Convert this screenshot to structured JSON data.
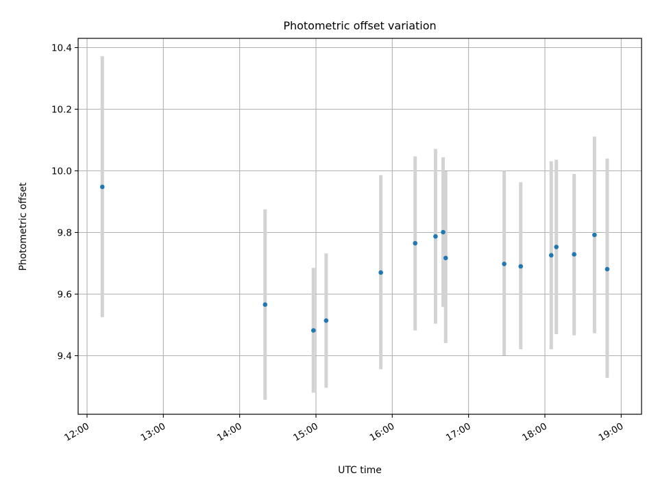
{
  "chart_data": {
    "type": "scatter",
    "title": "Photometric offset variation",
    "xlabel": "UTC time",
    "ylabel": "Photometric offset",
    "xlim": [
      "11:53",
      "19:16"
    ],
    "ylim": [
      9.21,
      10.43
    ],
    "x_ticks": [
      "12:00",
      "13:00",
      "14:00",
      "15:00",
      "16:00",
      "17:00",
      "18:00",
      "19:00"
    ],
    "y_ticks": [
      9.4,
      9.6,
      9.8,
      10.0,
      10.2,
      10.4
    ],
    "y_tick_labels": [
      "9.4",
      "9.6",
      "9.8",
      "10.0",
      "10.2",
      "10.4"
    ],
    "grid": true,
    "point_color": "#1f77b4",
    "errorbar_color": "#d3d3d3",
    "points": [
      {
        "time": "12:12",
        "y": 9.948,
        "ylow": 9.525,
        "yhigh": 10.372
      },
      {
        "time": "14:20",
        "y": 9.566,
        "ylow": 9.257,
        "yhigh": 9.875
      },
      {
        "time": "14:58",
        "y": 9.482,
        "ylow": 9.28,
        "yhigh": 9.685
      },
      {
        "time": "15:08",
        "y": 9.514,
        "ylow": 9.296,
        "yhigh": 9.732
      },
      {
        "time": "15:51",
        "y": 9.67,
        "ylow": 9.356,
        "yhigh": 9.986
      },
      {
        "time": "16:18",
        "y": 9.765,
        "ylow": 9.482,
        "yhigh": 10.047
      },
      {
        "time": "16:34",
        "y": 9.787,
        "ylow": 9.504,
        "yhigh": 10.071
      },
      {
        "time": "16:40",
        "y": 9.801,
        "ylow": 9.558,
        "yhigh": 10.044
      },
      {
        "time": "16:42",
        "y": 9.717,
        "ylow": 9.441,
        "yhigh": 9.999
      },
      {
        "time": "17:28",
        "y": 9.698,
        "ylow": 9.401,
        "yhigh": 10.0
      },
      {
        "time": "17:41",
        "y": 9.69,
        "ylow": 9.421,
        "yhigh": 9.963
      },
      {
        "time": "18:05",
        "y": 9.726,
        "ylow": 9.421,
        "yhigh": 10.031
      },
      {
        "time": "18:09",
        "y": 9.753,
        "ylow": 9.47,
        "yhigh": 10.036
      },
      {
        "time": "18:23",
        "y": 9.729,
        "ylow": 9.466,
        "yhigh": 9.99
      },
      {
        "time": "18:39",
        "y": 9.792,
        "ylow": 9.473,
        "yhigh": 10.111
      },
      {
        "time": "18:49",
        "y": 9.681,
        "ylow": 9.328,
        "yhigh": 10.04
      }
    ]
  }
}
